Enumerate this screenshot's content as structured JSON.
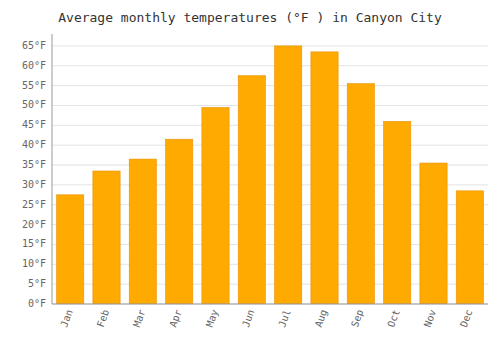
{
  "chart_data": {
    "type": "bar",
    "title": "Average monthly temperatures (°F ) in Canyon City",
    "categories": [
      "Jan",
      "Feb",
      "Mar",
      "Apr",
      "May",
      "Jun",
      "Jul",
      "Aug",
      "Sep",
      "Oct",
      "Nov",
      "Dec"
    ],
    "values": [
      27.5,
      33.5,
      36.5,
      41.5,
      49.5,
      57.5,
      65,
      63.5,
      55.5,
      46,
      35.5,
      28.5
    ],
    "color": "#FFAA00",
    "ylim": [
      0,
      68
    ],
    "yticks": [
      {
        "value": 0,
        "label": "0°F"
      },
      {
        "value": 5,
        "label": "5°F"
      },
      {
        "value": 10,
        "label": "10°F"
      },
      {
        "value": 15,
        "label": "15°F"
      },
      {
        "value": 20,
        "label": "20°F"
      },
      {
        "value": 25,
        "label": "25°F"
      },
      {
        "value": 30,
        "label": "30°F"
      },
      {
        "value": 35,
        "label": "35°F"
      },
      {
        "value": 40,
        "label": "40°F"
      },
      {
        "value": 45,
        "label": "45°F"
      },
      {
        "value": 50,
        "label": "50°F"
      },
      {
        "value": 55,
        "label": "55°F"
      },
      {
        "value": 60,
        "label": "60°F"
      },
      {
        "value": 65,
        "label": "65°F"
      }
    ],
    "grid": true
  }
}
